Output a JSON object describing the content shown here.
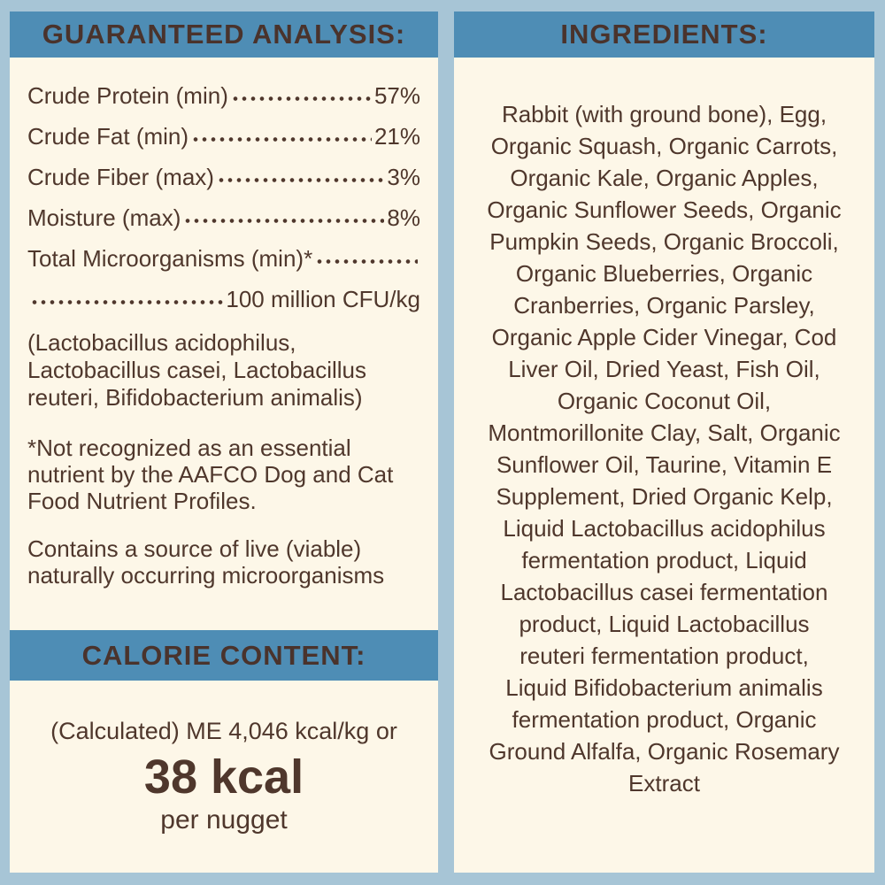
{
  "colors": {
    "page_bg": "#a7c5d6",
    "header_bg": "#4e8db5",
    "panel_bg": "#fdf7e8",
    "text_brown": "#4f372c"
  },
  "guaranteed_analysis": {
    "title": "GUARANTEED ANALYSIS:",
    "rows": [
      {
        "label": "Crude Protein (min)",
        "value": "57%"
      },
      {
        "label": "Crude Fat (min)",
        "value": "21%"
      },
      {
        "label": "Crude Fiber (max)",
        "value": "3%"
      },
      {
        "label": "Moisture (max)",
        "value": "8%"
      },
      {
        "label": "Total Microorganisms (min)*",
        "value": ""
      },
      {
        "label": "",
        "value": "100 million CFU/kg"
      }
    ],
    "microorganisms_note": "(Lactobacillus acidophilus, Lactobacillus casei, Lactobacillus reuteri, Bifidobacterium animalis)",
    "footnote": "*Not recognized as an essential nutrient by the AAFCO Dog and Cat Food Nutrient Profiles.",
    "live_microorganisms_note": "Contains a source of live (viable) naturally occurring microorganisms"
  },
  "calorie_content": {
    "title": "CALORIE CONTENT:",
    "calculated_line": "(Calculated) ME 4,046 kcal/kg or",
    "value": "38 kcal",
    "per": "per nugget"
  },
  "ingredients": {
    "title": "INGREDIENTS:",
    "lines": [
      "Rabbit (with ground bone), Egg,",
      "Organic Squash, Organic Carrots,",
      "Organic Kale, Organic Apples,",
      "Organic Sunflower Seeds, Organic",
      "Pumpkin Seeds, Organic Broccoli,",
      "Organic Blueberries, Organic",
      "Cranberries, Organic Parsley,",
      "Organic Apple Cider Vinegar, Cod",
      "Liver Oil, Dried Yeast, Fish Oil,",
      "Organic Coconut Oil,",
      "Montmorillonite Clay, Salt, Organic",
      "Sunflower Oil, Taurine, Vitamin E",
      "Supplement, Dried Organic Kelp,",
      "Liquid Lactobacillus acidophilus",
      "fermentation product, Liquid",
      "Lactobacillus casei fermentation",
      "product, Liquid Lactobacillus",
      "reuteri fermentation product,",
      "Liquid Bifidobacterium animalis",
      "fermentation product, Organic",
      "Ground Alfalfa, Organic Rosemary",
      "Extract"
    ]
  }
}
